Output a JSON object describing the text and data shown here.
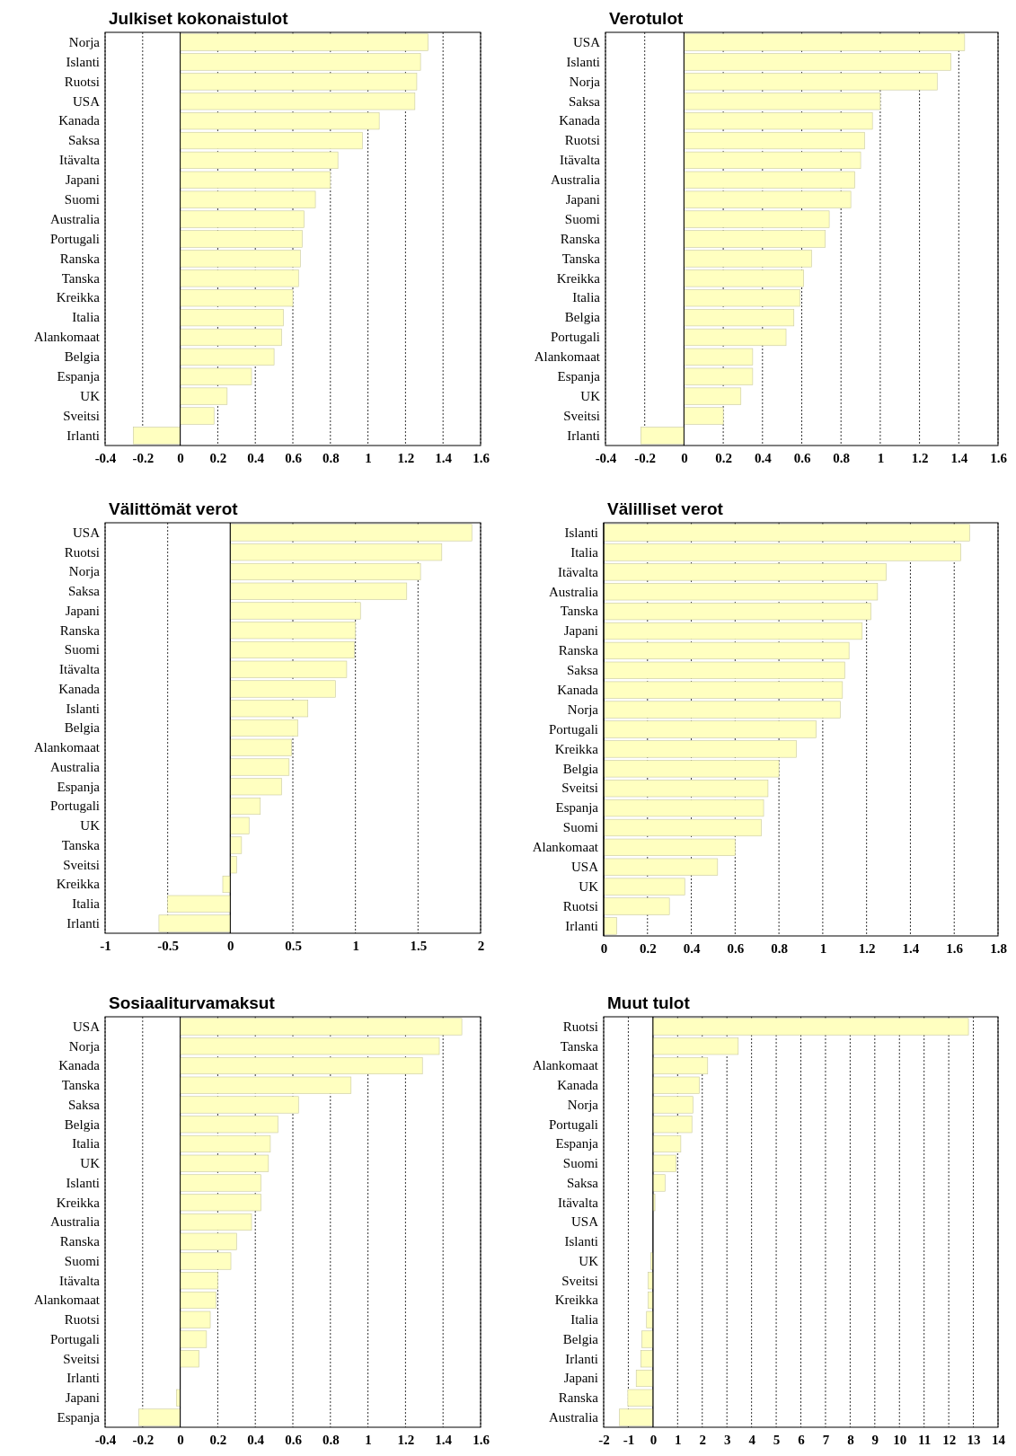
{
  "chart_data": [
    {
      "type": "bar",
      "orientation": "horizontal",
      "title": "Julkiset kokonaistulot",
      "grid": "x",
      "color": "#ffffc0",
      "xlim": [
        -0.4,
        1.6
      ],
      "xticks": [
        -0.4,
        -0.2,
        0,
        0.2,
        0.4,
        0.6,
        0.8,
        1,
        1.2,
        1.4,
        1.6
      ],
      "categories": [
        "Norja",
        "Islanti",
        "Ruotsi",
        "USA",
        "Kanada",
        "Saksa",
        "Itävalta",
        "Japani",
        "Suomi",
        "Australia",
        "Portugali",
        "Ranska",
        "Tanska",
        "Kreikka",
        "Italia",
        "Alankomaat",
        "Belgia",
        "Espanja",
        "UK",
        "Sveitsi",
        "Irlanti"
      ],
      "values": [
        1.32,
        1.28,
        1.26,
        1.25,
        1.06,
        0.97,
        0.84,
        0.8,
        0.72,
        0.66,
        0.65,
        0.64,
        0.63,
        0.6,
        0.55,
        0.54,
        0.5,
        0.38,
        0.25,
        0.18,
        -0.25
      ]
    },
    {
      "type": "bar",
      "orientation": "horizontal",
      "title": "Verotulot",
      "grid": "x",
      "color": "#ffffc0",
      "xlim": [
        -0.4,
        1.6
      ],
      "xticks": [
        -0.4,
        -0.2,
        0,
        0.2,
        0.4,
        0.6,
        0.8,
        1,
        1.2,
        1.4,
        1.6
      ],
      "categories": [
        "USA",
        "Islanti",
        "Norja",
        "Saksa",
        "Kanada",
        "Ruotsi",
        "Itävalta",
        "Australia",
        "Japani",
        "Suomi",
        "Ranska",
        "Tanska",
        "Kreikka",
        "Italia",
        "Belgia",
        "Portugali",
        "Alankomaat",
        "Espanja",
        "UK",
        "Sveitsi",
        "Irlanti"
      ],
      "values": [
        1.43,
        1.36,
        1.29,
        1.0,
        0.96,
        0.92,
        0.9,
        0.87,
        0.85,
        0.74,
        0.72,
        0.65,
        0.61,
        0.59,
        0.56,
        0.52,
        0.35,
        0.35,
        0.29,
        0.2,
        -0.22
      ]
    },
    {
      "type": "bar",
      "orientation": "horizontal",
      "title": "Välittömät verot",
      "grid": "x",
      "color": "#ffffc0",
      "xlim": [
        -1,
        2
      ],
      "xticks": [
        -1,
        -0.5,
        0,
        0.5,
        1,
        1.5,
        2
      ],
      "categories": [
        "USA",
        "Ruotsi",
        "Norja",
        "Saksa",
        "Japani",
        "Ranska",
        "Suomi",
        "Itävalta",
        "Kanada",
        "Islanti",
        "Belgia",
        "Alankomaat",
        "Australia",
        "Espanja",
        "Portugali",
        "UK",
        "Tanska",
        "Sveitsi",
        "Kreikka",
        "Italia",
        "Irlanti"
      ],
      "values": [
        1.93,
        1.69,
        1.52,
        1.41,
        1.04,
        1.0,
        0.99,
        0.93,
        0.84,
        0.62,
        0.54,
        0.49,
        0.47,
        0.41,
        0.24,
        0.15,
        0.09,
        0.05,
        -0.06,
        -0.5,
        -0.57
      ]
    },
    {
      "type": "bar",
      "orientation": "horizontal",
      "title": "Välilliset verot",
      "grid": "x",
      "color": "#ffffc0",
      "xlim": [
        0,
        1.8
      ],
      "xticks": [
        0,
        0.2,
        0.4,
        0.6,
        0.8,
        1,
        1.2,
        1.4,
        1.6,
        1.8
      ],
      "categories": [
        "Islanti",
        "Italia",
        "Itävalta",
        "Australia",
        "Tanska",
        "Japani",
        "Ranska",
        "Saksa",
        "Kanada",
        "Norja",
        "Portugali",
        "Kreikka",
        "Belgia",
        "Sveitsi",
        "Espanja",
        "Suomi",
        "Alankomaat",
        "USA",
        "UK",
        "Ruotsi",
        "Irlanti"
      ],
      "values": [
        1.67,
        1.63,
        1.29,
        1.25,
        1.22,
        1.18,
        1.12,
        1.1,
        1.09,
        1.08,
        0.97,
        0.88,
        0.8,
        0.75,
        0.73,
        0.72,
        0.6,
        0.52,
        0.37,
        0.3,
        0.06
      ]
    },
    {
      "type": "bar",
      "orientation": "horizontal",
      "title": "Sosiaaliturvamaksut",
      "grid": "x",
      "color": "#ffffc0",
      "xlim": [
        -0.4,
        1.6
      ],
      "xticks": [
        -0.4,
        -0.2,
        0,
        0.2,
        0.4,
        0.6,
        0.8,
        1,
        1.2,
        1.4,
        1.6
      ],
      "categories": [
        "USA",
        "Norja",
        "Kanada",
        "Tanska",
        "Saksa",
        "Belgia",
        "Italia",
        "UK",
        "Islanti",
        "Kreikka",
        "Australia",
        "Ranska",
        "Suomi",
        "Itävalta",
        "Alankomaat",
        "Ruotsi",
        "Portugali",
        "Sveitsi",
        "Irlanti",
        "Japani",
        "Espanja"
      ],
      "values": [
        1.5,
        1.38,
        1.29,
        0.91,
        0.63,
        0.52,
        0.48,
        0.47,
        0.43,
        0.43,
        0.38,
        0.3,
        0.27,
        0.2,
        0.19,
        0.16,
        0.14,
        0.1,
        0.0,
        -0.02,
        -0.22
      ]
    },
    {
      "type": "bar",
      "orientation": "horizontal",
      "title": "Muut tulot",
      "grid": "x",
      "color": "#ffffc0",
      "xlim": [
        -2,
        14
      ],
      "xticks": [
        -2,
        -1,
        0,
        1,
        2,
        3,
        4,
        5,
        6,
        7,
        8,
        9,
        10,
        11,
        12,
        13,
        14
      ],
      "categories": [
        "Ruotsi",
        "Tanska",
        "Alankomaat",
        "Kanada",
        "Norja",
        "Portugali",
        "Espanja",
        "Suomi",
        "Saksa",
        "Itävalta",
        "USA",
        "Islanti",
        "UK",
        "Sveitsi",
        "Kreikka",
        "Italia",
        "Belgia",
        "Irlanti",
        "Japani",
        "Ranska",
        "Australia"
      ],
      "values": [
        12.8,
        3.46,
        2.22,
        1.88,
        1.62,
        1.58,
        1.13,
        0.94,
        0.49,
        0.08,
        0,
        0,
        -0.08,
        -0.19,
        -0.19,
        -0.26,
        -0.45,
        -0.49,
        -0.68,
        -1.02,
        -1.36
      ]
    }
  ]
}
